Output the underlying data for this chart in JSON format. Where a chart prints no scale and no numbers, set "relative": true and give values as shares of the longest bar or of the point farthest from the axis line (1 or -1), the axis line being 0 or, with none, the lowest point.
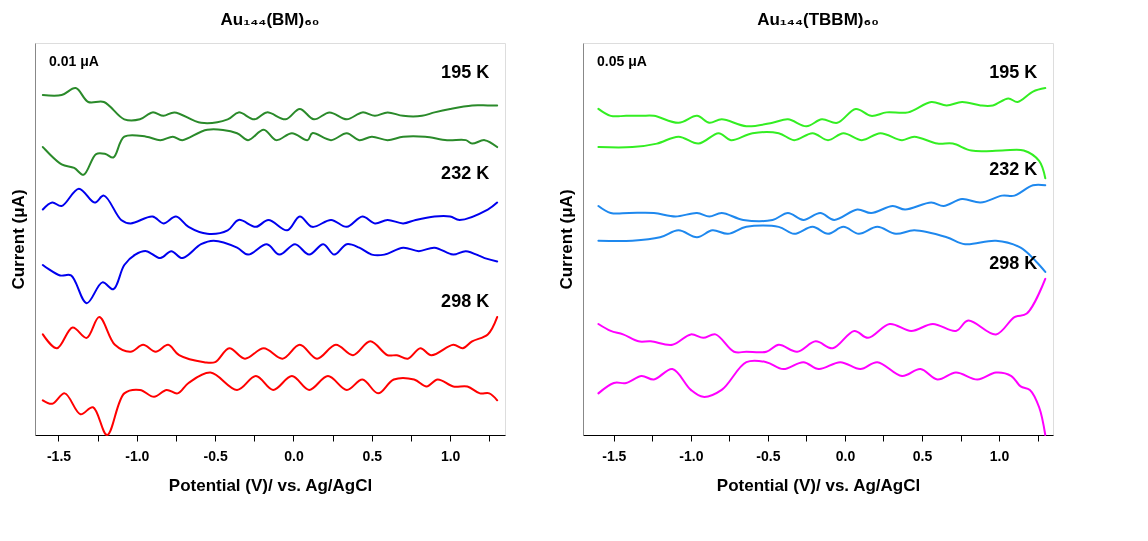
{
  "chart_data": [
    {
      "type": "line",
      "title": "Au₁₄₄(BM)₆₀",
      "xlabel": "Potential (V)/ vs. Ag/AgCl",
      "ylabel": "Current (μA)",
      "relative": true,
      "xlim": [
        -1.65,
        1.35
      ],
      "xticks": [
        -1.5,
        {
          "value": -1.25,
          "label": null
        },
        {
          "value": -1,
          "label": "-1.0"
        },
        {
          "value": -0.75,
          "label": null
        },
        -0.5,
        {
          "value": -0.25,
          "label": null
        },
        {
          "value": 0,
          "label": "0.0"
        },
        {
          "value": 0.25,
          "label": null
        },
        0.5,
        {
          "value": 0.75,
          "label": null
        },
        {
          "value": 1,
          "label": "1.0"
        },
        {
          "value": 1.25,
          "label": null
        }
      ],
      "annotations": [
        "0.01 μA"
      ],
      "series": [
        {
          "name": "195 K",
          "color": "#2a8a2a",
          "x": [
            -1.6,
            -1.48,
            -1.39,
            -1.31,
            -1.21,
            -1.08,
            -0.98,
            -0.9,
            -0.83,
            -0.76,
            -0.59,
            -0.42,
            -0.35,
            -0.25,
            -0.17,
            -0.05,
            0.04,
            0.13,
            0.23,
            0.34,
            0.44,
            0.52,
            0.6,
            0.7,
            0.82,
            0.9,
            1.0,
            1.14,
            1.24,
            1.3,
            1.3,
            1.22,
            1.14,
            1.1,
            0.98,
            0.84,
            0.7,
            0.6,
            0.5,
            0.42,
            0.34,
            0.24,
            0.12,
            0.09,
            -0.01,
            -0.11,
            -0.19,
            -0.29,
            -0.36,
            -0.55,
            -0.71,
            -0.77,
            -0.85,
            -0.94,
            -1.08,
            -1.15,
            -1.2,
            -1.26,
            -1.34,
            -1.4,
            -1.48,
            -1.6
          ],
          "values": [
            0.98,
            0.98,
            1.0,
            0.96,
            0.96,
            0.91,
            0.91,
            0.93,
            0.92,
            0.93,
            0.9,
            0.91,
            0.93,
            0.91,
            0.93,
            0.91,
            0.94,
            0.91,
            0.93,
            0.91,
            0.93,
            0.92,
            0.93,
            0.92,
            0.92,
            0.93,
            0.94,
            0.95,
            0.95,
            0.95,
            0.83,
            0.85,
            0.84,
            0.85,
            0.85,
            0.86,
            0.86,
            0.85,
            0.86,
            0.85,
            0.87,
            0.85,
            0.87,
            0.85,
            0.87,
            0.85,
            0.88,
            0.85,
            0.87,
            0.88,
            0.85,
            0.86,
            0.85,
            0.86,
            0.86,
            0.8,
            0.81,
            0.81,
            0.75,
            0.77,
            0.78,
            0.83
          ]
        },
        {
          "name": "232 K",
          "color": "#0000ee",
          "x": [
            -1.6,
            -1.54,
            -1.48,
            -1.37,
            -1.27,
            -1.21,
            -1.1,
            -1.04,
            -0.9,
            -0.83,
            -0.75,
            -0.67,
            -0.55,
            -0.42,
            -0.35,
            -0.24,
            -0.16,
            -0.04,
            0.04,
            0.12,
            0.24,
            0.34,
            0.44,
            0.52,
            0.6,
            0.7,
            0.78,
            0.9,
            1.0,
            1.06,
            1.24,
            1.3,
            1.3,
            1.22,
            1.1,
            1.02,
            0.9,
            0.8,
            0.7,
            0.58,
            0.5,
            0.42,
            0.34,
            0.26,
            0.19,
            0.1,
            0.01,
            -0.09,
            -0.17,
            -0.29,
            -0.36,
            -0.51,
            -0.59,
            -0.71,
            -0.78,
            -0.85,
            -0.94,
            -1.01,
            -1.08,
            -1.15,
            -1.22,
            -1.32,
            -1.42,
            -1.49,
            -1.6
          ],
          "values": [
            0.65,
            0.67,
            0.66,
            0.71,
            0.67,
            0.69,
            0.62,
            0.61,
            0.63,
            0.61,
            0.63,
            0.6,
            0.58,
            0.59,
            0.62,
            0.6,
            0.62,
            0.59,
            0.63,
            0.6,
            0.62,
            0.6,
            0.63,
            0.61,
            0.62,
            0.61,
            0.62,
            0.63,
            0.63,
            0.62,
            0.65,
            0.67,
            0.5,
            0.51,
            0.53,
            0.52,
            0.54,
            0.53,
            0.54,
            0.52,
            0.52,
            0.54,
            0.55,
            0.52,
            0.55,
            0.52,
            0.55,
            0.52,
            0.55,
            0.52,
            0.54,
            0.56,
            0.55,
            0.51,
            0.53,
            0.51,
            0.53,
            0.52,
            0.49,
            0.42,
            0.44,
            0.38,
            0.46,
            0.46,
            0.49
          ]
        },
        {
          "name": "298 K",
          "color": "#ff0000",
          "x": [
            -1.6,
            -1.51,
            -1.41,
            -1.32,
            -1.24,
            -1.14,
            -1.04,
            -0.96,
            -0.88,
            -0.8,
            -0.73,
            -0.57,
            -0.5,
            -0.41,
            -0.31,
            -0.19,
            -0.07,
            0.04,
            0.15,
            0.27,
            0.38,
            0.49,
            0.6,
            0.66,
            0.73,
            0.81,
            0.88,
            1.02,
            1.08,
            1.14,
            1.24,
            1.3,
            1.3,
            1.25,
            1.19,
            1.11,
            1.02,
            0.92,
            0.85,
            0.77,
            0.64,
            0.54,
            0.44,
            0.34,
            0.22,
            0.1,
            -0.01,
            -0.13,
            -0.24,
            -0.36,
            -0.53,
            -0.67,
            -0.74,
            -0.81,
            -0.89,
            -0.98,
            -1.08,
            -1.19,
            -1.28,
            -1.36,
            -1.46,
            -1.54,
            -1.6
          ],
          "values": [
            0.29,
            0.25,
            0.31,
            0.28,
            0.34,
            0.26,
            0.24,
            0.26,
            0.24,
            0.26,
            0.23,
            0.21,
            0.21,
            0.25,
            0.22,
            0.25,
            0.22,
            0.26,
            0.22,
            0.26,
            0.23,
            0.27,
            0.23,
            0.23,
            0.22,
            0.25,
            0.23,
            0.26,
            0.25,
            0.27,
            0.29,
            0.34,
            0.1,
            0.12,
            0.12,
            0.14,
            0.14,
            0.16,
            0.14,
            0.16,
            0.16,
            0.12,
            0.16,
            0.13,
            0.17,
            0.13,
            0.17,
            0.13,
            0.17,
            0.13,
            0.18,
            0.15,
            0.12,
            0.13,
            0.11,
            0.13,
            0.12,
            0.0,
            0.08,
            0.06,
            0.12,
            0.09,
            0.1
          ]
        }
      ]
    },
    {
      "type": "line",
      "title": "Au₁₄₄(TBBM)₆₀",
      "xlabel": "Potential (V)/ vs. Ag/AgCl",
      "ylabel": "Current (μA)",
      "relative": true,
      "xlim": [
        -1.7,
        1.35
      ],
      "xticks": [
        -1.5,
        {
          "value": -1.25,
          "label": null
        },
        {
          "value": -1,
          "label": "-1.0"
        },
        {
          "value": -0.75,
          "label": null
        },
        -0.5,
        {
          "value": -0.25,
          "label": null
        },
        {
          "value": 0,
          "label": "0.0"
        },
        {
          "value": 0.25,
          "label": null
        },
        0.5,
        {
          "value": 0.75,
          "label": null
        },
        {
          "value": 1,
          "label": "1.0"
        },
        {
          "value": 1.25,
          "label": null
        }
      ],
      "annotations": [
        "0.05 μA"
      ],
      "series": [
        {
          "name": "195 K",
          "color": "#33ee22",
          "x": [
            -1.6,
            -1.52,
            -1.42,
            -1.32,
            -1.24,
            -1.08,
            -0.96,
            -0.88,
            -0.8,
            -0.64,
            -0.47,
            -0.37,
            -0.25,
            -0.15,
            -0.05,
            0.07,
            0.17,
            0.27,
            0.41,
            0.56,
            0.66,
            0.76,
            0.88,
            0.96,
            1.06,
            1.12,
            1.22,
            1.3,
            1.3,
            1.26,
            1.16,
            1.02,
            0.82,
            0.7,
            0.6,
            0.45,
            0.37,
            0.23,
            0.11,
            -0.01,
            -0.11,
            -0.21,
            -0.33,
            -0.43,
            -0.6,
            -0.74,
            -0.82,
            -0.95,
            -1.08,
            -1.22,
            -1.38,
            -1.6
          ],
          "values": [
            0.94,
            0.92,
            0.92,
            0.92,
            0.92,
            0.9,
            0.92,
            0.9,
            0.91,
            0.89,
            0.9,
            0.91,
            0.89,
            0.91,
            0.9,
            0.94,
            0.92,
            0.93,
            0.93,
            0.96,
            0.95,
            0.96,
            0.95,
            0.95,
            0.97,
            0.96,
            0.99,
            1.0,
            0.74,
            0.79,
            0.82,
            0.82,
            0.82,
            0.84,
            0.84,
            0.86,
            0.85,
            0.87,
            0.85,
            0.87,
            0.85,
            0.87,
            0.85,
            0.87,
            0.87,
            0.85,
            0.87,
            0.84,
            0.86,
            0.84,
            0.83,
            0.83
          ]
        },
        {
          "name": "232 K",
          "color": "#1e88ee",
          "x": [
            -1.6,
            -1.52,
            -1.4,
            -1.24,
            -1.1,
            -0.96,
            -0.88,
            -0.8,
            -0.66,
            -0.47,
            -0.37,
            -0.27,
            -0.16,
            -0.07,
            0.08,
            0.17,
            0.31,
            0.39,
            0.56,
            0.64,
            0.76,
            0.88,
            1.02,
            1.1,
            1.22,
            1.3,
            1.3,
            1.24,
            1.14,
            0.98,
            0.78,
            0.66,
            0.45,
            0.33,
            0.21,
            0.09,
            -0.01,
            -0.11,
            -0.21,
            -0.33,
            -0.43,
            -0.64,
            -0.76,
            -0.86,
            -0.96,
            -1.08,
            -1.2,
            -1.38,
            -1.6
          ],
          "values": [
            0.66,
            0.64,
            0.64,
            0.64,
            0.63,
            0.64,
            0.63,
            0.64,
            0.62,
            0.62,
            0.64,
            0.62,
            0.64,
            0.62,
            0.65,
            0.64,
            0.66,
            0.65,
            0.67,
            0.66,
            0.68,
            0.67,
            0.69,
            0.69,
            0.72,
            0.72,
            0.47,
            0.5,
            0.54,
            0.56,
            0.55,
            0.57,
            0.59,
            0.58,
            0.6,
            0.58,
            0.6,
            0.58,
            0.6,
            0.58,
            0.6,
            0.6,
            0.58,
            0.59,
            0.57,
            0.59,
            0.57,
            0.56,
            0.56
          ]
        },
        {
          "name": "298 K",
          "color": "#ff00ff",
          "x": [
            -1.6,
            -1.52,
            -1.44,
            -1.34,
            -1.26,
            -1.12,
            -1.0,
            -0.92,
            -0.84,
            -0.72,
            -0.64,
            -0.51,
            -0.43,
            -0.31,
            -0.19,
            -0.08,
            0.06,
            0.15,
            0.29,
            0.43,
            0.57,
            0.72,
            0.8,
            0.98,
            1.1,
            1.18,
            1.3,
            1.3,
            1.26,
            1.2,
            1.14,
            1.08,
            0.98,
            0.86,
            0.72,
            0.6,
            0.49,
            0.37,
            0.21,
            0.1,
            -0.03,
            -0.17,
            -0.27,
            -0.4,
            -0.51,
            -0.64,
            -0.8,
            -0.92,
            -1.0,
            -1.12,
            -1.24,
            -1.32,
            -1.42,
            -1.5,
            -1.6
          ],
          "values": [
            0.32,
            0.3,
            0.29,
            0.27,
            0.27,
            0.26,
            0.29,
            0.28,
            0.29,
            0.24,
            0.24,
            0.24,
            0.26,
            0.24,
            0.27,
            0.25,
            0.3,
            0.28,
            0.32,
            0.3,
            0.32,
            0.3,
            0.33,
            0.29,
            0.34,
            0.35,
            0.45,
            0.0,
            0.08,
            0.13,
            0.14,
            0.17,
            0.18,
            0.16,
            0.18,
            0.16,
            0.19,
            0.17,
            0.21,
            0.19,
            0.21,
            0.19,
            0.21,
            0.19,
            0.21,
            0.21,
            0.13,
            0.11,
            0.13,
            0.19,
            0.16,
            0.17,
            0.15,
            0.15,
            0.12
          ]
        }
      ]
    }
  ]
}
